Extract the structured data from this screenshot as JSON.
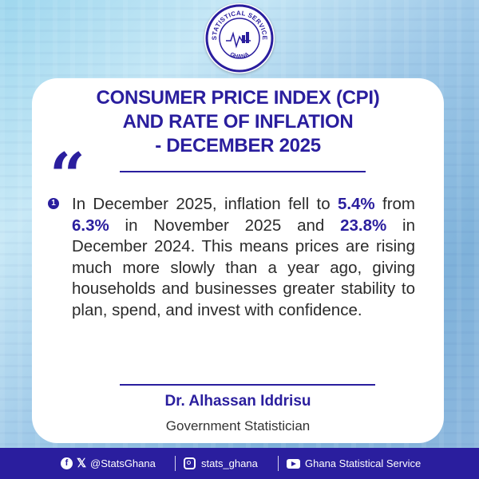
{
  "logo": {
    "top_text": "STATISTICAL SERVICE",
    "bottom_text": "GHANA"
  },
  "title": {
    "line1": "CONSUMER PRICE INDEX (CPI)",
    "line2": "AND RATE OF INFLATION",
    "line3": "- DECEMBER 2025"
  },
  "quote": {
    "marker": "1",
    "t1": "In December 2025, inflation fell to ",
    "v1": "5.4%",
    "t2": " from ",
    "v2": "6.3%",
    "t3": " in November 2025 and ",
    "v3": "23.8%",
    "t4": " in December 2024. This means prices are rising much more slowly than a year ago, giving households and businesses greater stability to plan, spend, and invest with confidence."
  },
  "author": {
    "name": "Dr. Alhassan Iddrisu",
    "title": "Government Statistician"
  },
  "footer": {
    "x_handle": "@StatsGhana",
    "instagram_handle": "stats_ghana",
    "youtube_channel": "Ghana Statistical Service"
  },
  "colors": {
    "primary": "#2a1e9e",
    "text": "#2b2b2b",
    "card": "#ffffff"
  },
  "icons": [
    "facebook-icon",
    "x-icon",
    "instagram-icon",
    "youtube-icon",
    "quote-icon"
  ]
}
